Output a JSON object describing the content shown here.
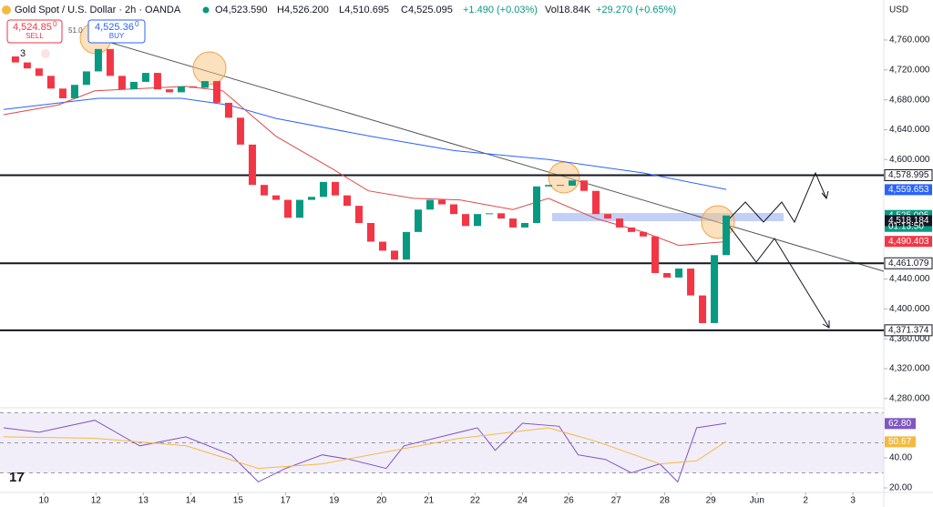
{
  "header": {
    "symbol": "Gold Spot / U.S. Dollar · 2h · OANDA",
    "ohlc": [
      "O4,523.590",
      "H4,526.200",
      "L4,510.695",
      "C4,525.095"
    ],
    "change": "+1.490 (+0.03%)",
    "volume": "Vol18.84K",
    "vol_change": "+29.270 (+0.65%)",
    "currency": "USD"
  },
  "trade": {
    "sell_price": "4,524.85",
    "sell_sup": "0",
    "sell": "SELL",
    "spread": "51.0",
    "buy_price": "4,525.36",
    "buy_sup": "0",
    "buy": "BUY",
    "indicators": "3"
  },
  "chart_data": {
    "type": "candlestick",
    "close": [
      4738,
      4730,
      4722,
      4712,
      4695,
      4682,
      4700,
      4718,
      4748,
      4712,
      4694,
      4704,
      4716,
      4694,
      4690,
      4698,
      4696,
      4705,
      4676,
      4656,
      4620,
      4566,
      4552,
      4546,
      4522,
      4546,
      4550,
      4570,
      4552,
      4538,
      4515,
      4490,
      4478,
      4466,
      4503,
      4533,
      4546,
      4540,
      4527,
      4511,
      4527,
      4528,
      4521,
      4509,
      4515,
      4564,
      4566,
      4565,
      4572,
      4558,
      4527,
      4521,
      4509,
      4503,
      4497,
      4448,
      4442,
      4454,
      4418,
      4381,
      4472,
      4525.095
    ],
    "up_color": "#089981",
    "down_color": "#f23645",
    "ma": [
      {
        "color": "#2962ff",
        "x": [
          0,
          8,
          15,
          19,
          23,
          31,
          38,
          46,
          54,
          61
        ],
        "values": [
          4667,
          4682,
          4682,
          4673,
          4655,
          4631,
          4612,
          4600,
          4582,
          4560
        ]
      },
      {
        "color": "#e04848",
        "x": [
          0,
          4.6,
          7.7,
          15.4,
          18.5,
          23,
          27.7,
          30.8,
          34.6,
          38.5,
          43,
          46,
          50,
          54,
          57,
          61
        ],
        "values": [
          4660,
          4673,
          4692,
          4698,
          4692,
          4631,
          4588,
          4558,
          4548,
          4546,
          4533,
          4548,
          4521,
          4503,
          4485,
          4490
        ]
      }
    ],
    "xlim": [
      -0.3,
      74.3
    ],
    "ylim": [
      4267.6,
      4813.6
    ],
    "yticks": [
      {
        "value": 4760,
        "label": "4,760.000"
      },
      {
        "value": 4720,
        "label": "4,720.000"
      },
      {
        "value": 4680,
        "label": "4,680.000"
      },
      {
        "value": 4640,
        "label": "4,640.000"
      },
      {
        "value": 4600,
        "label": "4,600.000"
      },
      {
        "value": 4440,
        "label": "4,440.000"
      },
      {
        "value": 4400,
        "label": "4,400.000"
      },
      {
        "value": 4360,
        "label": "4,360.000"
      },
      {
        "value": 4320,
        "label": "4,320.000"
      },
      {
        "value": 4280,
        "label": "4,280.000"
      }
    ],
    "xticks": [
      {
        "value": 3.4,
        "label": "10"
      },
      {
        "value": 7.8,
        "label": "12"
      },
      {
        "value": 11.8,
        "label": "13"
      },
      {
        "value": 15.8,
        "label": "14"
      },
      {
        "value": 19.8,
        "label": "15"
      },
      {
        "value": 23.8,
        "label": "17"
      },
      {
        "value": 27.9,
        "label": "19"
      },
      {
        "value": 31.9,
        "label": "20"
      },
      {
        "value": 35.9,
        "label": "21"
      },
      {
        "value": 39.8,
        "label": "22"
      },
      {
        "value": 43.8,
        "label": "24"
      },
      {
        "value": 47.7,
        "label": "26"
      },
      {
        "value": 51.7,
        "label": "27"
      },
      {
        "value": 55.8,
        "label": "28"
      },
      {
        "value": 59.7,
        "label": "29"
      },
      {
        "value": 63.6,
        "label": "Jun"
      },
      {
        "value": 67.7,
        "label": "2"
      },
      {
        "value": 71.7,
        "label": "3"
      }
    ],
    "levels": [
      {
        "value": 4578.995,
        "label": "4,578.995"
      },
      {
        "value": 4461.079,
        "label": "4,461.079"
      },
      {
        "value": 4371.374,
        "label": "4,371.374"
      }
    ],
    "price_labels": [
      {
        "value": 4559.653,
        "label": "4,559.653",
        "color": "#2962ff"
      },
      {
        "value": 4525.095,
        "label": "4,525.095",
        "color": "#089981"
      },
      {
        "value": 4518.184,
        "label": "4,518.184",
        "color": "#131722"
      },
      {
        "value": 4490.403,
        "label": "4,490.403",
        "color": "#f23645"
      }
    ],
    "countdown": "01:13:50",
    "rsi": {
      "ylim": [
        17,
        73.3
      ],
      "yticks": [
        {
          "value": 40,
          "label": "40.00"
        },
        {
          "value": 20,
          "label": "20.00"
        }
      ],
      "bands": [
        30,
        50,
        70
      ],
      "series": [
        {
          "color": "#7e57c2",
          "x": [
            0,
            3,
            7.7,
            11.5,
            15.4,
            19.2,
            21.5,
            23.8,
            26.9,
            29.2,
            32.3,
            33.8,
            36.9,
            40,
            41.5,
            43.8,
            46.9,
            48.5,
            50.8,
            53,
            55.4,
            56.9,
            58.5,
            61
          ],
          "values": [
            60,
            57,
            65,
            48,
            54,
            42,
            24,
            33,
            42,
            39,
            33,
            48,
            54,
            60,
            45,
            63,
            61,
            42,
            39,
            30,
            36,
            24,
            60,
            63
          ]
        },
        {
          "color": "#f5b942",
          "x": [
            0,
            7.7,
            15.4,
            21.5,
            26.9,
            33,
            38.5,
            46,
            50,
            55.4,
            58.5,
            61
          ],
          "values": [
            54,
            53,
            48,
            33,
            36,
            45,
            53,
            60,
            51,
            36,
            38,
            51
          ]
        }
      ],
      "last_labels": [
        {
          "value": 62.8,
          "label": "62.80",
          "color": "#7e57c2"
        },
        {
          "value": 50.67,
          "label": "50.67",
          "color": "#f5b942"
        }
      ]
    }
  }
}
